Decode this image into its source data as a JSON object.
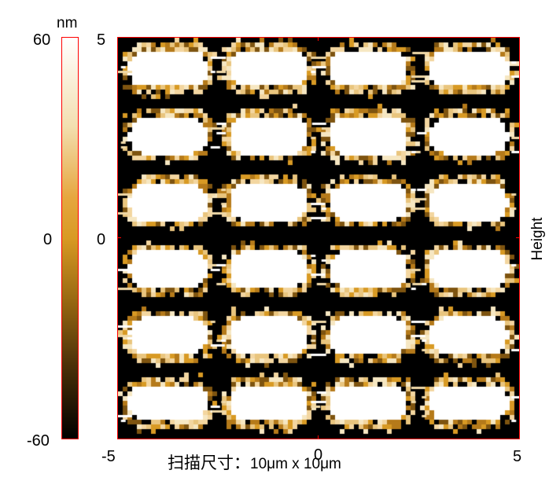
{
  "colorbar": {
    "unit": "nm",
    "max_label": "60",
    "mid_label": "0",
    "min_label": "-60"
  },
  "axis": {
    "top_left_label": "5",
    "left_mid_label": "0",
    "bottom_left_label": "-5",
    "bottom_mid_label": "0",
    "bottom_right_label": "5"
  },
  "side_label": "Height",
  "caption": {
    "prefix": "扫描尺寸：",
    "value": "10μm x 10μm"
  },
  "colors": {
    "frame": "#ff0000",
    "background": "#000000",
    "feature": "#ffffff",
    "edge": "#d89a24"
  },
  "image": {
    "type": "AFM height map",
    "grid": "6 rows x 4 columns of rounded rectangular pads"
  }
}
